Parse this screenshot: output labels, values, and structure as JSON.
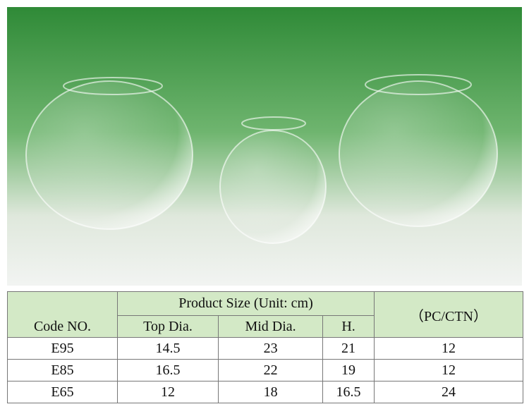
{
  "table": {
    "group_header": "Product Size (Unit: cm)",
    "headers": [
      "Code NO.",
      "Top Dia.",
      "Mid Dia.",
      "H.",
      "（PC/CTN）"
    ],
    "rows": [
      [
        "E95",
        14.5,
        23,
        21,
        12
      ],
      [
        "E85",
        16.5,
        22,
        19,
        12
      ],
      [
        "E65",
        12,
        18,
        16.5,
        24
      ]
    ]
  }
}
